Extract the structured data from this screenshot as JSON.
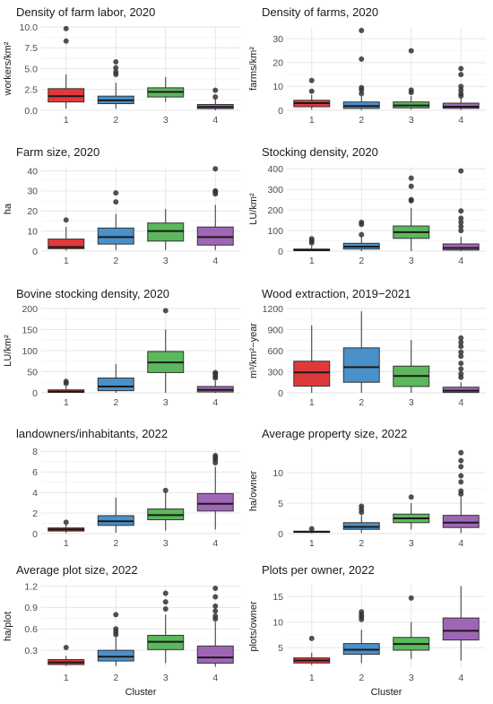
{
  "chart_data": [
    {
      "type": "box",
      "title": "Density of farm labor, 2020",
      "ylabel": "workers/km²",
      "xlabel": "",
      "categories": [
        "1",
        "2",
        "3",
        "4"
      ],
      "ylim": [
        0,
        10
      ],
      "yticks": [
        0.0,
        2.5,
        5.0,
        7.5,
        10.0
      ],
      "yticklabels": [
        "0.0",
        "2.5",
        "5.0",
        "7.5",
        "10.0"
      ],
      "boxes": [
        {
          "q1": 1.0,
          "median": 1.7,
          "q3": 2.6,
          "whisker_low": 0.2,
          "whisker_high": 4.3,
          "outliers": [
            8.3,
            9.8
          ]
        },
        {
          "q1": 0.8,
          "median": 1.2,
          "q3": 1.7,
          "whisker_low": 0.2,
          "whisker_high": 3.3,
          "outliers": [
            4.3,
            4.6,
            5.1,
            5.8
          ]
        },
        {
          "q1": 1.6,
          "median": 2.2,
          "q3": 2.7,
          "whisker_low": 1.0,
          "whisker_high": 4.0,
          "outliers": []
        },
        {
          "q1": 0.2,
          "median": 0.4,
          "q3": 0.7,
          "whisker_low": 0.0,
          "whisker_high": 1.3,
          "outliers": [
            1.6,
            2.4
          ]
        }
      ]
    },
    {
      "type": "box",
      "title": "Density of farms, 2020",
      "ylabel": "farms/km²",
      "xlabel": "",
      "categories": [
        "1",
        "2",
        "3",
        "4"
      ],
      "ylim": [
        0,
        35
      ],
      "yticks": [
        0,
        10,
        20,
        30
      ],
      "yticklabels": [
        "0",
        "10",
        "20",
        "30"
      ],
      "boxes": [
        {
          "q1": 1.5,
          "median": 3.0,
          "q3": 4.2,
          "whisker_low": 0.3,
          "whisker_high": 6.5,
          "outliers": [
            8.0,
            12.5
          ]
        },
        {
          "q1": 0.8,
          "median": 1.8,
          "q3": 3.5,
          "whisker_low": 0.1,
          "whisker_high": 6.0,
          "outliers": [
            7.0,
            8.5,
            9.5,
            21.5,
            33.5
          ]
        },
        {
          "q1": 1.0,
          "median": 2.0,
          "q3": 3.5,
          "whisker_low": 0.3,
          "whisker_high": 6.0,
          "outliers": [
            7.5,
            8.5,
            25.0
          ]
        },
        {
          "q1": 0.8,
          "median": 1.5,
          "q3": 3.0,
          "whisker_low": 0.1,
          "whisker_high": 5.0,
          "outliers": [
            6.0,
            7.0,
            8.5,
            10.0,
            15.0,
            17.5
          ]
        }
      ]
    },
    {
      "type": "box",
      "title": "Farm size, 2020",
      "ylabel": "ha",
      "xlabel": "",
      "categories": [
        "1",
        "2",
        "3",
        "4"
      ],
      "ylim": [
        0,
        42
      ],
      "yticks": [
        0,
        10,
        20,
        30,
        40
      ],
      "yticklabels": [
        "0",
        "10",
        "20",
        "30",
        "40"
      ],
      "boxes": [
        {
          "q1": 1.2,
          "median": 2.0,
          "q3": 6.0,
          "whisker_low": 0.3,
          "whisker_high": 12.0,
          "outliers": [
            15.5
          ]
        },
        {
          "q1": 3.5,
          "median": 7.0,
          "q3": 11.5,
          "whisker_low": 0.5,
          "whisker_high": 18.5,
          "outliers": [
            24.5,
            29.0
          ]
        },
        {
          "q1": 5.0,
          "median": 10.0,
          "q3": 14.0,
          "whisker_low": 0.5,
          "whisker_high": 21.0,
          "outliers": []
        },
        {
          "q1": 3.0,
          "median": 7.0,
          "q3": 12.0,
          "whisker_low": 0.5,
          "whisker_high": 23.0,
          "outliers": [
            28.5,
            29.5,
            30.0,
            41.0
          ]
        }
      ]
    },
    {
      "type": "box",
      "title": "Stocking density, 2020",
      "ylabel": "LU/km²",
      "xlabel": "",
      "categories": [
        "1",
        "2",
        "3",
        "4"
      ],
      "ylim": [
        0,
        410
      ],
      "yticks": [
        0,
        100,
        200,
        300,
        400
      ],
      "yticklabels": [
        "0",
        "100",
        "200",
        "300",
        "400"
      ],
      "boxes": [
        {
          "q1": 2,
          "median": 5,
          "q3": 10,
          "whisker_low": 0,
          "whisker_high": 25,
          "outliers": [
            40,
            50,
            60
          ]
        },
        {
          "q1": 10,
          "median": 22,
          "q3": 38,
          "whisker_low": 0,
          "whisker_high": 75,
          "outliers": [
            80,
            130,
            140
          ]
        },
        {
          "q1": 62,
          "median": 92,
          "q3": 122,
          "whisker_low": 0,
          "whisker_high": 210,
          "outliers": [
            245,
            250,
            315,
            355
          ]
        },
        {
          "q1": 5,
          "median": 15,
          "q3": 35,
          "whisker_low": 0,
          "whisker_high": 70,
          "outliers": [
            100,
            120,
            140,
            160,
            195,
            390
          ]
        }
      ]
    },
    {
      "type": "box",
      "title": "Bovine stocking density, 2020",
      "ylabel": "LU/km²",
      "xlabel": "",
      "categories": [
        "1",
        "2",
        "3",
        "4"
      ],
      "ylim": [
        0,
        200
      ],
      "yticks": [
        0,
        50,
        100,
        150,
        200
      ],
      "yticklabels": [
        "0",
        "50",
        "100",
        "150",
        "200"
      ],
      "boxes": [
        {
          "q1": 1,
          "median": 3,
          "q3": 7,
          "whisker_low": 0,
          "whisker_high": 15,
          "outliers": [
            22,
            27
          ]
        },
        {
          "q1": 5,
          "median": 15,
          "q3": 35,
          "whisker_low": 0,
          "whisker_high": 68,
          "outliers": []
        },
        {
          "q1": 48,
          "median": 72,
          "q3": 98,
          "whisker_low": 0,
          "whisker_high": 150,
          "outliers": [
            195
          ]
        },
        {
          "q1": 2,
          "median": 7,
          "q3": 15,
          "whisker_low": 0,
          "whisker_high": 28,
          "outliers": [
            35,
            40,
            45,
            48
          ]
        }
      ]
    },
    {
      "type": "box",
      "title": "Wood extraction, 2019−2021",
      "ylabel": "m³/km²−year",
      "xlabel": "",
      "categories": [
        "1",
        "2",
        "3",
        "4"
      ],
      "ylim": [
        0,
        1200
      ],
      "yticks": [
        0,
        300,
        600,
        900,
        1200
      ],
      "yticklabels": [
        "0",
        "300",
        "600",
        "900",
        "1200"
      ],
      "boxes": [
        {
          "q1": 95,
          "median": 290,
          "q3": 450,
          "whisker_low": 0,
          "whisker_high": 960,
          "outliers": []
        },
        {
          "q1": 150,
          "median": 365,
          "q3": 640,
          "whisker_low": 0,
          "whisker_high": 1160,
          "outliers": []
        },
        {
          "q1": 90,
          "median": 240,
          "q3": 380,
          "whisker_low": 0,
          "whisker_high": 750,
          "outliers": []
        },
        {
          "q1": 5,
          "median": 30,
          "q3": 80,
          "whisker_low": 0,
          "whisker_high": 150,
          "outliers": [
            220,
            270,
            340,
            420,
            520,
            580,
            660,
            720,
            780
          ]
        }
      ]
    },
    {
      "type": "box",
      "title": "landowners/inhabitants, 2022",
      "ylabel": "",
      "xlabel": "",
      "categories": [
        "1",
        "2",
        "3",
        "4"
      ],
      "ylim": [
        0,
        8.3
      ],
      "yticks": [
        0,
        2,
        4,
        6,
        8
      ],
      "yticklabels": [
        "0",
        "2",
        "4",
        "6",
        "8"
      ],
      "boxes": [
        {
          "q1": 0.25,
          "median": 0.4,
          "q3": 0.55,
          "whisker_low": 0.05,
          "whisker_high": 0.9,
          "outliers": [
            1.1
          ]
        },
        {
          "q1": 0.8,
          "median": 1.2,
          "q3": 1.75,
          "whisker_low": 0.1,
          "whisker_high": 3.5,
          "outliers": []
        },
        {
          "q1": 1.35,
          "median": 1.8,
          "q3": 2.4,
          "whisker_low": 0.3,
          "whisker_high": 4.0,
          "outliers": [
            4.2
          ]
        },
        {
          "q1": 2.2,
          "median": 2.9,
          "q3": 3.9,
          "whisker_low": 0.4,
          "whisker_high": 6.5,
          "outliers": [
            6.9,
            7.2,
            7.4,
            7.6
          ]
        }
      ]
    },
    {
      "type": "box",
      "title": "Average property size, 2022",
      "ylabel": "ha/owner",
      "xlabel": "",
      "categories": [
        "1",
        "2",
        "3",
        "4"
      ],
      "ylim": [
        0,
        14
      ],
      "yticks": [
        0,
        5,
        10
      ],
      "yticklabels": [
        "0",
        "5",
        "10"
      ],
      "boxes": [
        {
          "q1": 0.2,
          "median": 0.3,
          "q3": 0.4,
          "whisker_low": 0.05,
          "whisker_high": 0.6,
          "outliers": [
            0.8
          ]
        },
        {
          "q1": 0.7,
          "median": 1.1,
          "q3": 1.8,
          "whisker_low": 0.1,
          "whisker_high": 3.0,
          "outliers": [
            3.5,
            4.0,
            4.5
          ]
        },
        {
          "q1": 1.8,
          "median": 2.5,
          "q3": 3.2,
          "whisker_low": 0.7,
          "whisker_high": 5.0,
          "outliers": [
            6.0
          ]
        },
        {
          "q1": 1.0,
          "median": 1.8,
          "q3": 3.0,
          "whisker_low": 0.1,
          "whisker_high": 6.0,
          "outliers": [
            6.5,
            7.0,
            8.5,
            9.5,
            11.0,
            12.0,
            13.3
          ]
        }
      ]
    },
    {
      "type": "box",
      "title": "Average plot size, 2022",
      "ylabel": "ha/plot",
      "xlabel": "Cluster",
      "categories": [
        "1",
        "2",
        "3",
        "4"
      ],
      "ylim": [
        0.05,
        1.22
      ],
      "yticks": [
        0.3,
        0.6,
        0.9,
        1.2
      ],
      "yticklabels": [
        "0.3",
        "0.6",
        "0.9",
        "1.2"
      ],
      "boxes": [
        {
          "q1": 0.1,
          "median": 0.13,
          "q3": 0.17,
          "whisker_low": 0.08,
          "whisker_high": 0.22,
          "outliers": [
            0.34
          ]
        },
        {
          "q1": 0.15,
          "median": 0.21,
          "q3": 0.3,
          "whisker_low": 0.08,
          "whisker_high": 0.48,
          "outliers": [
            0.52,
            0.56,
            0.6,
            0.8
          ]
        },
        {
          "q1": 0.31,
          "median": 0.42,
          "q3": 0.51,
          "whisker_low": 0.12,
          "whisker_high": 0.8,
          "outliers": [
            0.88,
            0.98,
            1.1
          ]
        },
        {
          "q1": 0.12,
          "median": 0.2,
          "q3": 0.36,
          "whisker_low": 0.07,
          "whisker_high": 0.7,
          "outliers": [
            0.74,
            0.78,
            0.85,
            0.92,
            1.05,
            1.17
          ]
        }
      ]
    },
    {
      "type": "box",
      "title": "Plots per owner, 2022",
      "ylabel": "plots/owner",
      "xlabel": "Cluster",
      "categories": [
        "1",
        "2",
        "3",
        "4"
      ],
      "ylim": [
        1,
        17.3
      ],
      "yticks": [
        5,
        10,
        15
      ],
      "yticklabels": [
        "5",
        "10",
        "15"
      ],
      "boxes": [
        {
          "q1": 2.0,
          "median": 2.5,
          "q3": 3.0,
          "whisker_low": 1.6,
          "whisker_high": 4.0,
          "outliers": [
            6.8
          ]
        },
        {
          "q1": 3.7,
          "median": 4.6,
          "q3": 5.8,
          "whisker_low": 2.0,
          "whisker_high": 8.5,
          "outliers": [
            10.5,
            11.0,
            11.5,
            12.0
          ]
        },
        {
          "q1": 4.5,
          "median": 5.7,
          "q3": 7.0,
          "whisker_low": 2.8,
          "whisker_high": 10.0,
          "outliers": [
            14.7
          ]
        },
        {
          "q1": 6.5,
          "median": 8.3,
          "q3": 10.8,
          "whisker_low": 2.5,
          "whisker_high": 17.0,
          "outliers": []
        }
      ]
    }
  ],
  "cluster_colors": [
    "#E0393B",
    "#4A90C9",
    "#5CB85C",
    "#A066B6"
  ]
}
